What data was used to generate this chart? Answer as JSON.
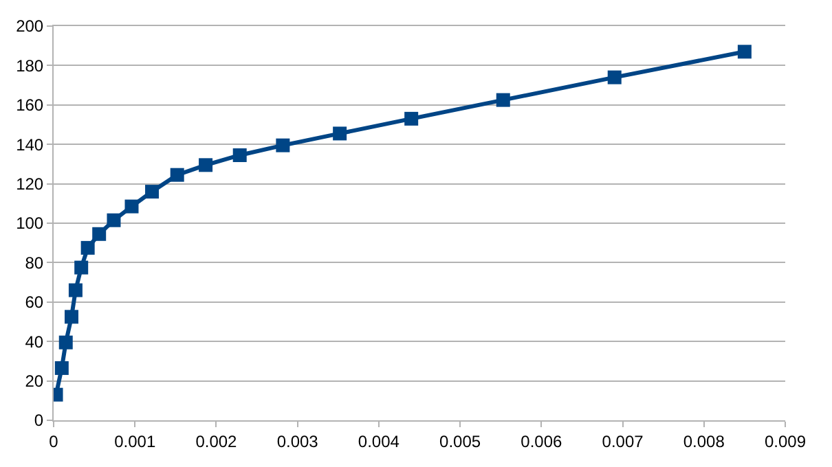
{
  "chart_data": {
    "type": "line",
    "marker": "square",
    "line_style": "solid",
    "grid": "y",
    "x": [
      3e-05,
      0.0001,
      0.00015,
      0.00022,
      0.00027,
      0.00034,
      0.00042,
      0.00056,
      0.00074,
      0.00096,
      0.00121,
      0.00152,
      0.00187,
      0.00229,
      0.00282,
      0.00352,
      0.0044,
      0.00553,
      0.0069,
      0.0085
    ],
    "series": [
      {
        "color": "#004586",
        "values": [
          13,
          26.5,
          39.5,
          52.5,
          66,
          77.5,
          87.5,
          94.5,
          101.5,
          108.5,
          116,
          124.5,
          129.5,
          134.5,
          139.5,
          145.5,
          153,
          162.5,
          174,
          187
        ]
      }
    ],
    "xlim": [
      0,
      0.009
    ],
    "xticks": [
      0,
      0.001,
      0.002,
      0.003,
      0.004,
      0.005,
      0.006,
      0.007,
      0.008,
      0.009
    ],
    "ylim": [
      0,
      200
    ],
    "yticks": [
      0,
      20,
      40,
      60,
      80,
      100,
      120,
      140,
      160,
      180,
      200
    ]
  }
}
